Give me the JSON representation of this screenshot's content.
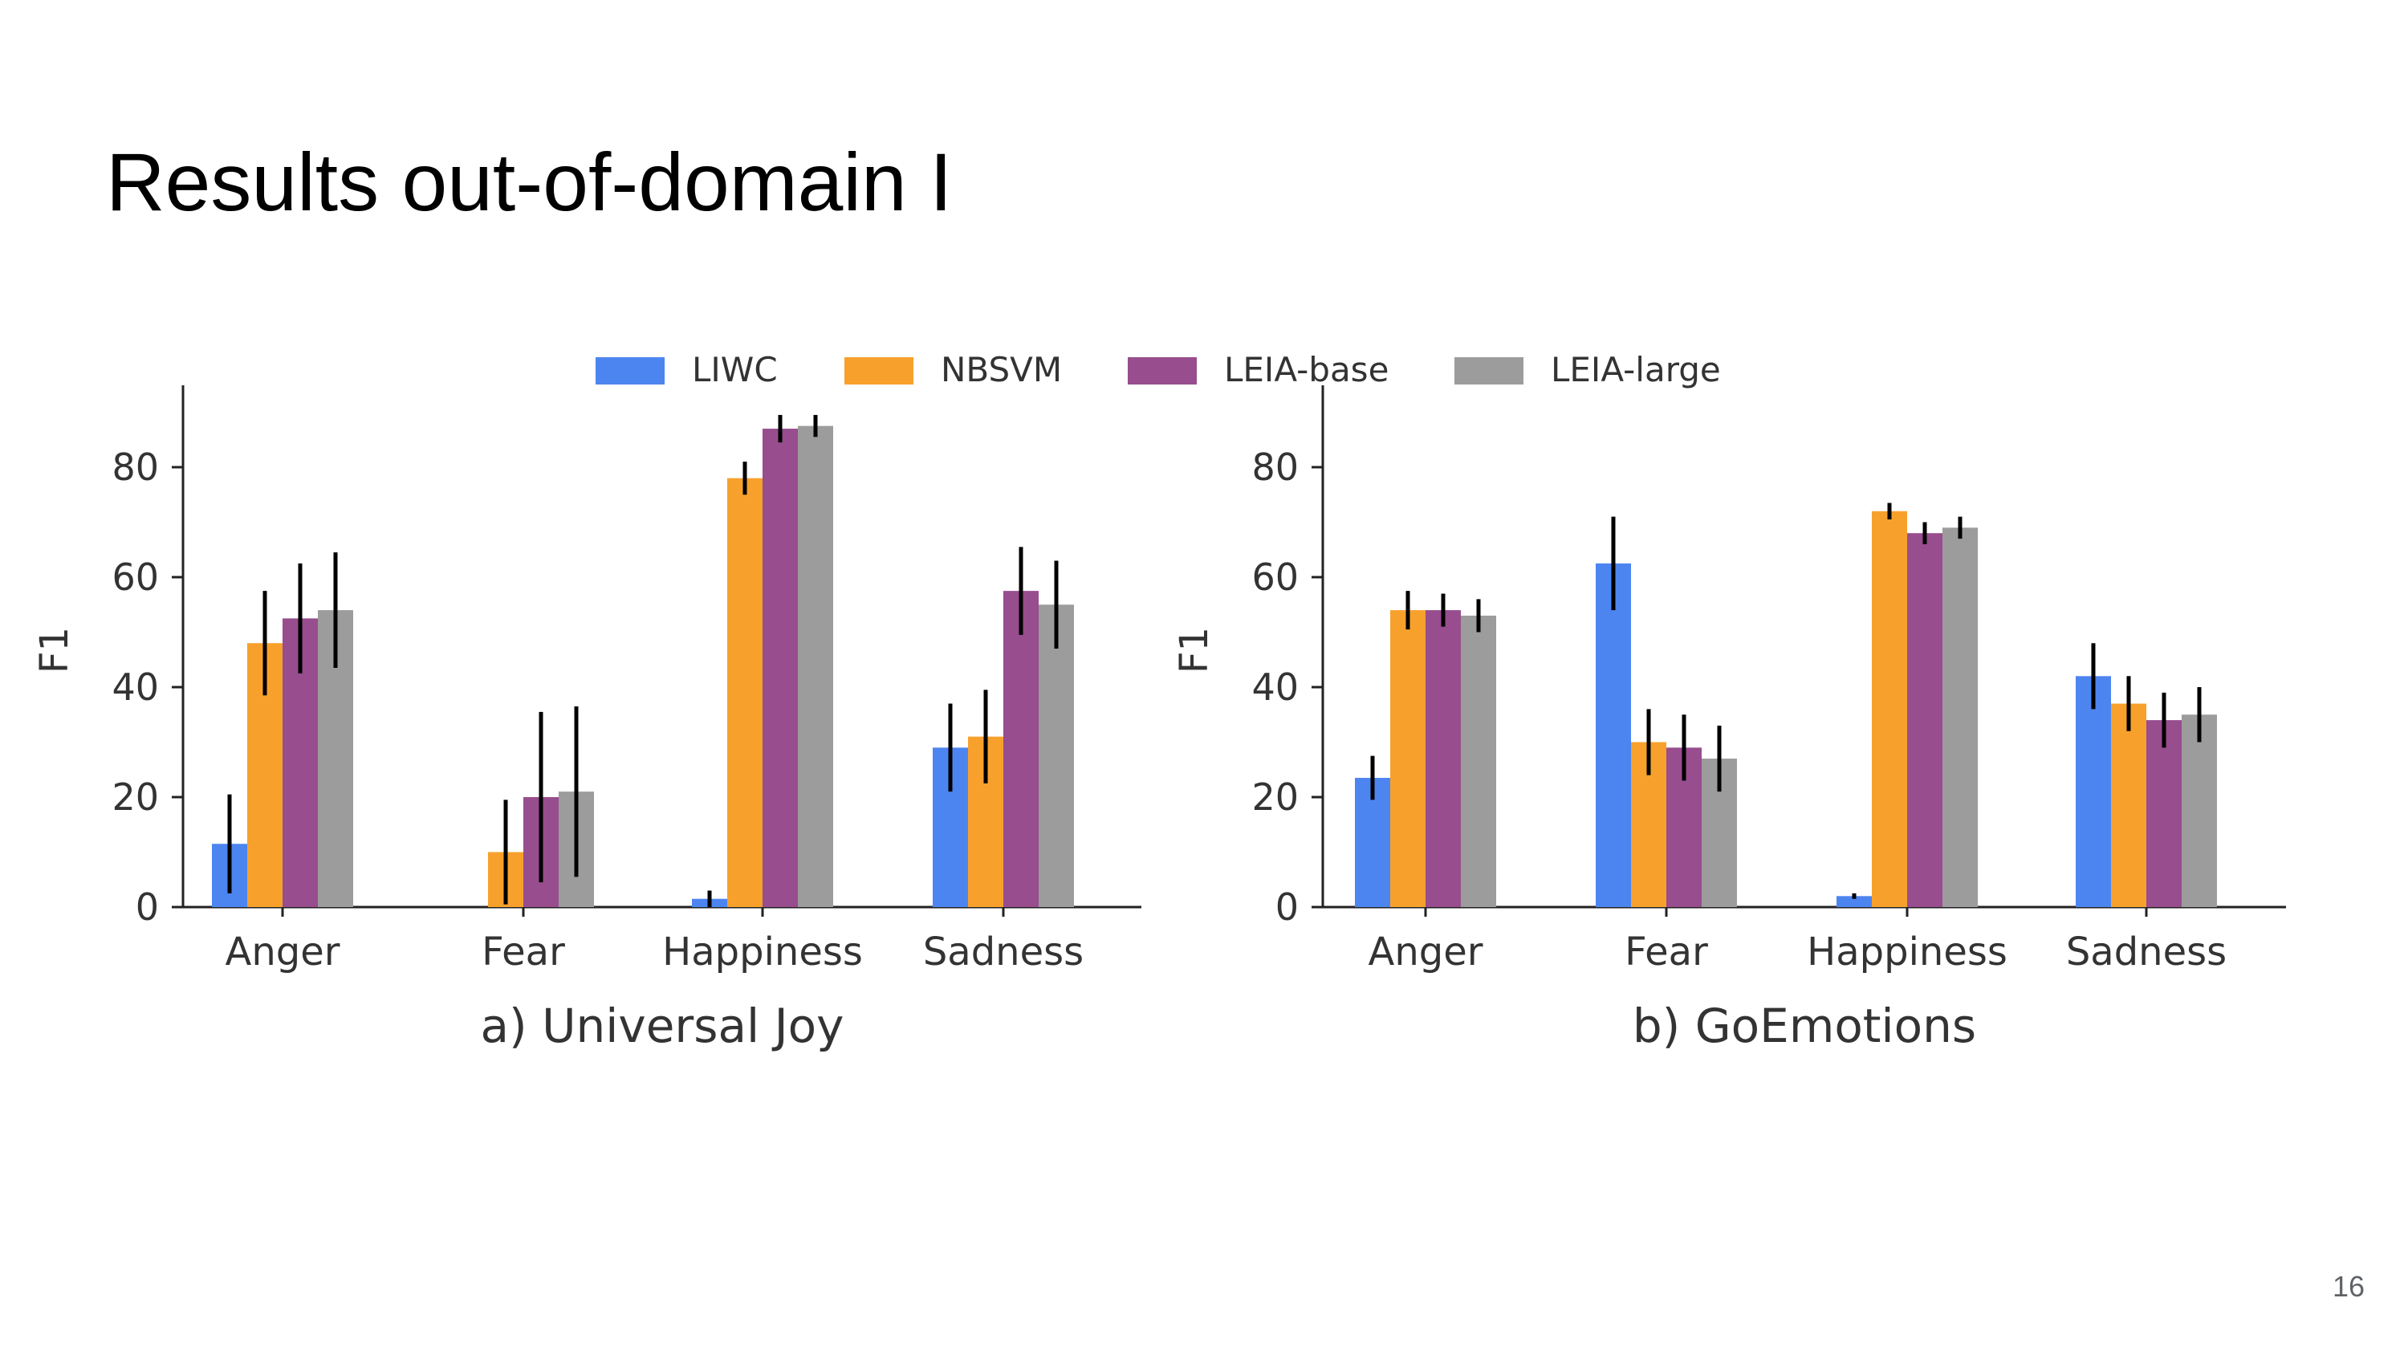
{
  "slide": {
    "title": "Results out-of-domain I",
    "page_number": "16"
  },
  "legend": [
    {
      "name": "LIWC",
      "color": "#4d85f0"
    },
    {
      "name": "NBSVM",
      "color": "#f7a12c"
    },
    {
      "name": "LEIA-base",
      "color": "#974d8e"
    },
    {
      "name": "LEIA-large",
      "color": "#9c9c9c"
    }
  ],
  "chart_data": [
    {
      "type": "bar",
      "title": "a) Universal Joy",
      "xlabel": "",
      "ylabel": "F1",
      "ylim": [
        0,
        95
      ],
      "yticks": [
        0,
        20,
        40,
        60,
        80
      ],
      "categories": [
        "Anger",
        "Fear",
        "Happiness",
        "Sadness"
      ],
      "series": [
        {
          "name": "LIWC",
          "values": [
            11.5,
            0,
            1.5,
            29
          ],
          "errors": [
            9,
            0,
            1.5,
            8
          ]
        },
        {
          "name": "NBSVM",
          "values": [
            48,
            10,
            78,
            31
          ],
          "errors": [
            9.5,
            9.5,
            3,
            8.5
          ]
        },
        {
          "name": "LEIA-base",
          "values": [
            52.5,
            20,
            87,
            57.5
          ],
          "errors": [
            10,
            15.5,
            2.5,
            8
          ]
        },
        {
          "name": "LEIA-large",
          "values": [
            54,
            21,
            87.5,
            55
          ],
          "errors": [
            10.5,
            15.5,
            2,
            8
          ]
        }
      ]
    },
    {
      "type": "bar",
      "title": "b) GoEmotions",
      "xlabel": "",
      "ylabel": "F1",
      "ylim": [
        0,
        95
      ],
      "yticks": [
        0,
        20,
        40,
        60,
        80
      ],
      "categories": [
        "Anger",
        "Fear",
        "Happiness",
        "Sadness"
      ],
      "series": [
        {
          "name": "LIWC",
          "values": [
            23.5,
            62.5,
            2,
            42
          ],
          "errors": [
            4,
            8.5,
            0.5,
            6
          ]
        },
        {
          "name": "NBSVM",
          "values": [
            54,
            30,
            72,
            37
          ],
          "errors": [
            3.5,
            6,
            1.5,
            5
          ]
        },
        {
          "name": "LEIA-base",
          "values": [
            54,
            29,
            68,
            34
          ],
          "errors": [
            3,
            6,
            2,
            5
          ]
        },
        {
          "name": "LEIA-large",
          "values": [
            53,
            27,
            69,
            35
          ],
          "errors": [
            3,
            6,
            2,
            5
          ]
        }
      ]
    }
  ]
}
